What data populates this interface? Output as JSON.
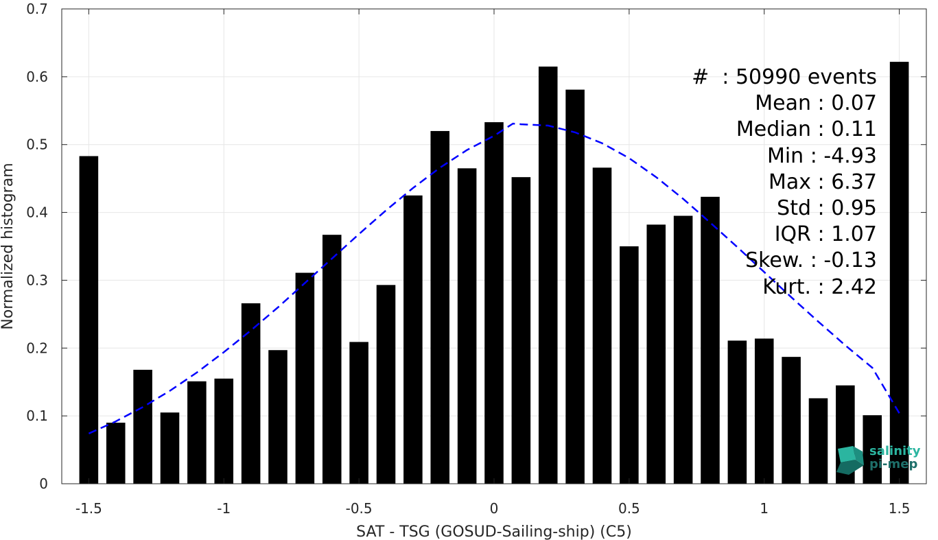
{
  "chart_data": {
    "type": "bar",
    "xlabel": "SAT - TSG (GOSUD-Sailing-ship) (C5)",
    "ylabel": "Normalized histogram",
    "xlim": [
      -1.6,
      1.6
    ],
    "ylim": [
      0,
      0.7
    ],
    "xticks": [
      "-1.5",
      "-1",
      "-0.5",
      "0",
      "0.5",
      "1",
      "1.5"
    ],
    "xtick_values": [
      -1.5,
      -1,
      -0.5,
      0,
      0.5,
      1,
      1.5
    ],
    "yticks": [
      "0",
      "0.1",
      "0.2",
      "0.3",
      "0.4",
      "0.5",
      "0.6",
      "0.7"
    ],
    "ytick_values": [
      0,
      0.1,
      0.2,
      0.3,
      0.4,
      0.5,
      0.6,
      0.7
    ],
    "grid": true,
    "bar_color": "#000000",
    "x": [
      -1.5,
      -1.4,
      -1.3,
      -1.2,
      -1.1,
      -1.0,
      -0.9,
      -0.8,
      -0.7,
      -0.6,
      -0.5,
      -0.4,
      -0.3,
      -0.2,
      -0.1,
      0.0,
      0.1,
      0.2,
      0.3,
      0.4,
      0.5,
      0.6,
      0.7,
      0.8,
      0.9,
      1.0,
      1.1,
      1.2,
      1.3,
      1.4,
      1.5
    ],
    "values": [
      0.483,
      0.09,
      0.168,
      0.105,
      0.151,
      0.155,
      0.266,
      0.197,
      0.311,
      0.367,
      0.209,
      0.293,
      0.425,
      0.52,
      0.465,
      0.533,
      0.452,
      0.615,
      0.581,
      0.466,
      0.35,
      0.382,
      0.395,
      0.423,
      0.211,
      0.214,
      0.187,
      0.126,
      0.145,
      0.101,
      0.622
    ],
    "fit_curve": {
      "style": "dashed",
      "color": "#0000ff",
      "mean": 0.07,
      "peak": 0.531,
      "x": [
        -1.5,
        -1.4,
        -1.3,
        -1.2,
        -1.1,
        -1.0,
        -0.9,
        -0.8,
        -0.7,
        -0.6,
        -0.5,
        -0.4,
        -0.3,
        -0.2,
        -0.1,
        0.0,
        0.07,
        0.1,
        0.2,
        0.3,
        0.4,
        0.5,
        0.6,
        0.7,
        0.8,
        0.9,
        1.0,
        1.1,
        1.2,
        1.3,
        1.4,
        1.5
      ],
      "y": [
        0.074,
        0.092,
        0.113,
        0.137,
        0.164,
        0.194,
        0.226,
        0.26,
        0.296,
        0.332,
        0.368,
        0.403,
        0.436,
        0.466,
        0.492,
        0.513,
        0.531,
        0.53,
        0.528,
        0.518,
        0.502,
        0.48,
        0.452,
        0.42,
        0.385,
        0.349,
        0.312,
        0.275,
        0.239,
        0.204,
        0.171,
        0.104
      ]
    }
  },
  "stats": [
    "#  : 50990 events",
    "Mean : 0.07",
    "Median : 0.11",
    "Min : -4.93",
    "Max : 6.37",
    "Std : 0.95",
    "IQR : 1.07",
    "Skew. : -0.13",
    "Kurt. : 2.42"
  ],
  "logo": {
    "line1": "salinity",
    "line2": "pi-mep",
    "color1": "#2bb5a0",
    "color2": "#1e6f6a"
  }
}
